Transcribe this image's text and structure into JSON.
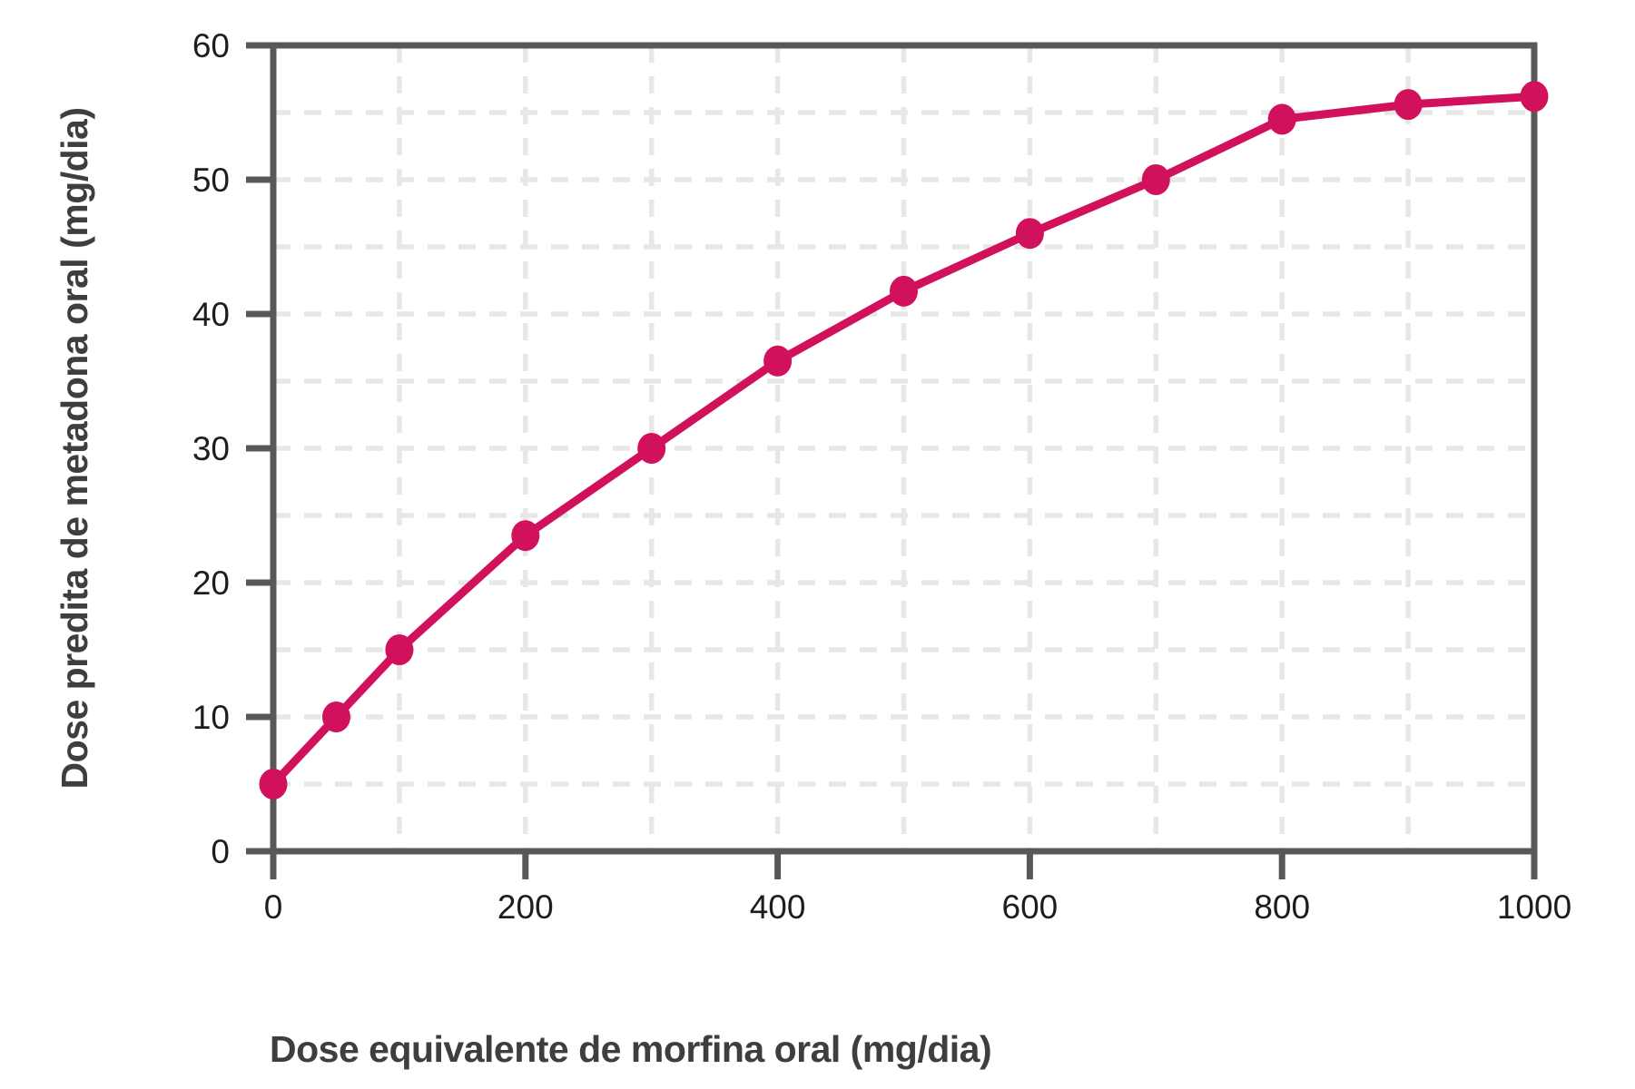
{
  "figure": {
    "background": "#ffffff",
    "accent_color": "#d2115c",
    "axis_color": "#58585a",
    "grid_color": "#e7e7e7",
    "tick_label_color": "#1d1d1b",
    "axis_title_color": "#3e3e3c"
  },
  "chart_data": {
    "type": "line",
    "title": "",
    "xlabel": "Dose equivalente de morfina oral (mg/dia)",
    "ylabel": "Dose predita de metadona oral (mg/dia)",
    "series": [
      {
        "name": "Dose predita de metadona oral",
        "x": [
          0,
          50,
          100,
          200,
          300,
          400,
          500,
          600,
          700,
          800,
          900,
          1000
        ],
        "y": [
          5,
          10,
          15,
          23.5,
          30,
          36.5,
          41.7,
          46,
          50,
          54.5,
          55.6,
          56.2
        ],
        "color": "#d2115c",
        "marker": "ellipse"
      }
    ],
    "xlim": [
      0,
      1000
    ],
    "ylim": [
      0,
      60
    ],
    "x_ticks": [
      0,
      200,
      400,
      600,
      800,
      1000
    ],
    "y_ticks": [
      0,
      10,
      20,
      30,
      40,
      50,
      60
    ],
    "x_minor_grid_step": 100,
    "y_minor_grid_step": 5,
    "grid_style": "dashed",
    "legend": "none"
  }
}
